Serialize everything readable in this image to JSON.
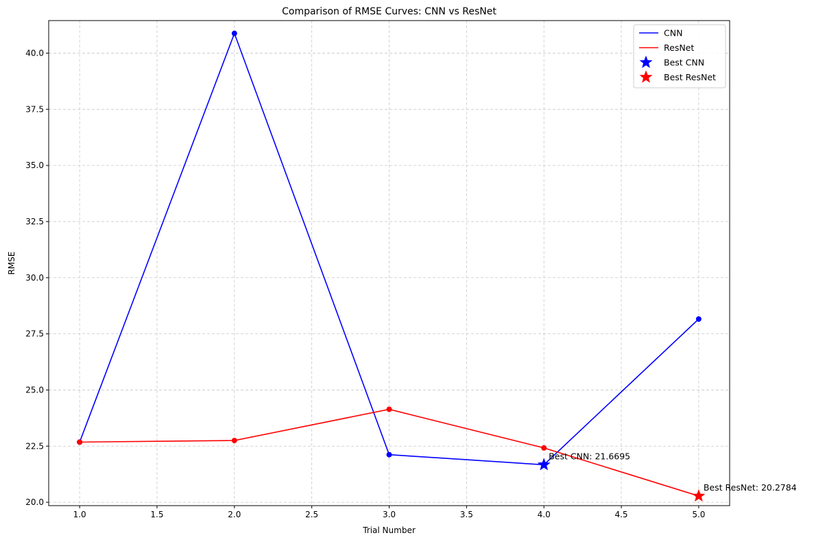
{
  "chart_data": {
    "type": "line",
    "title": "Comparison of RMSE Curves: CNN vs ResNet",
    "xlabel": "Trial Number",
    "ylabel": "RMSE",
    "xlim": [
      0.8,
      5.2
    ],
    "ylim": [
      19.85,
      41.45
    ],
    "xticks": [
      1.0,
      1.5,
      2.0,
      2.5,
      3.0,
      3.5,
      4.0,
      4.5,
      5.0
    ],
    "xtick_labels": [
      "1.0",
      "1.5",
      "2.0",
      "2.5",
      "3.0",
      "3.5",
      "4.0",
      "4.5",
      "5.0"
    ],
    "yticks": [
      20.0,
      22.5,
      25.0,
      27.5,
      30.0,
      32.5,
      35.0,
      37.5,
      40.0
    ],
    "ytick_labels": [
      "20.0",
      "22.5",
      "25.0",
      "27.5",
      "30.0",
      "32.5",
      "35.0",
      "37.5",
      "40.0"
    ],
    "grid": true,
    "legend_position": "top-right",
    "x": [
      1,
      2,
      3,
      4,
      5
    ],
    "series": [
      {
        "name": "CNN",
        "color": "#0000ff",
        "values": [
          22.68,
          40.88,
          22.12,
          21.6695,
          28.16
        ]
      },
      {
        "name": "ResNet",
        "color": "#ff0000",
        "values": [
          22.68,
          22.75,
          24.14,
          22.42,
          20.2784
        ]
      }
    ],
    "best_markers": [
      {
        "name": "Best CNN",
        "color": "#0000ff",
        "x": 4,
        "y": 21.6695,
        "annotation": "Best CNN: 21.6695"
      },
      {
        "name": "Best ResNet",
        "color": "#ff0000",
        "x": 5,
        "y": 20.2784,
        "annotation": "Best ResNet: 20.2784"
      }
    ]
  }
}
